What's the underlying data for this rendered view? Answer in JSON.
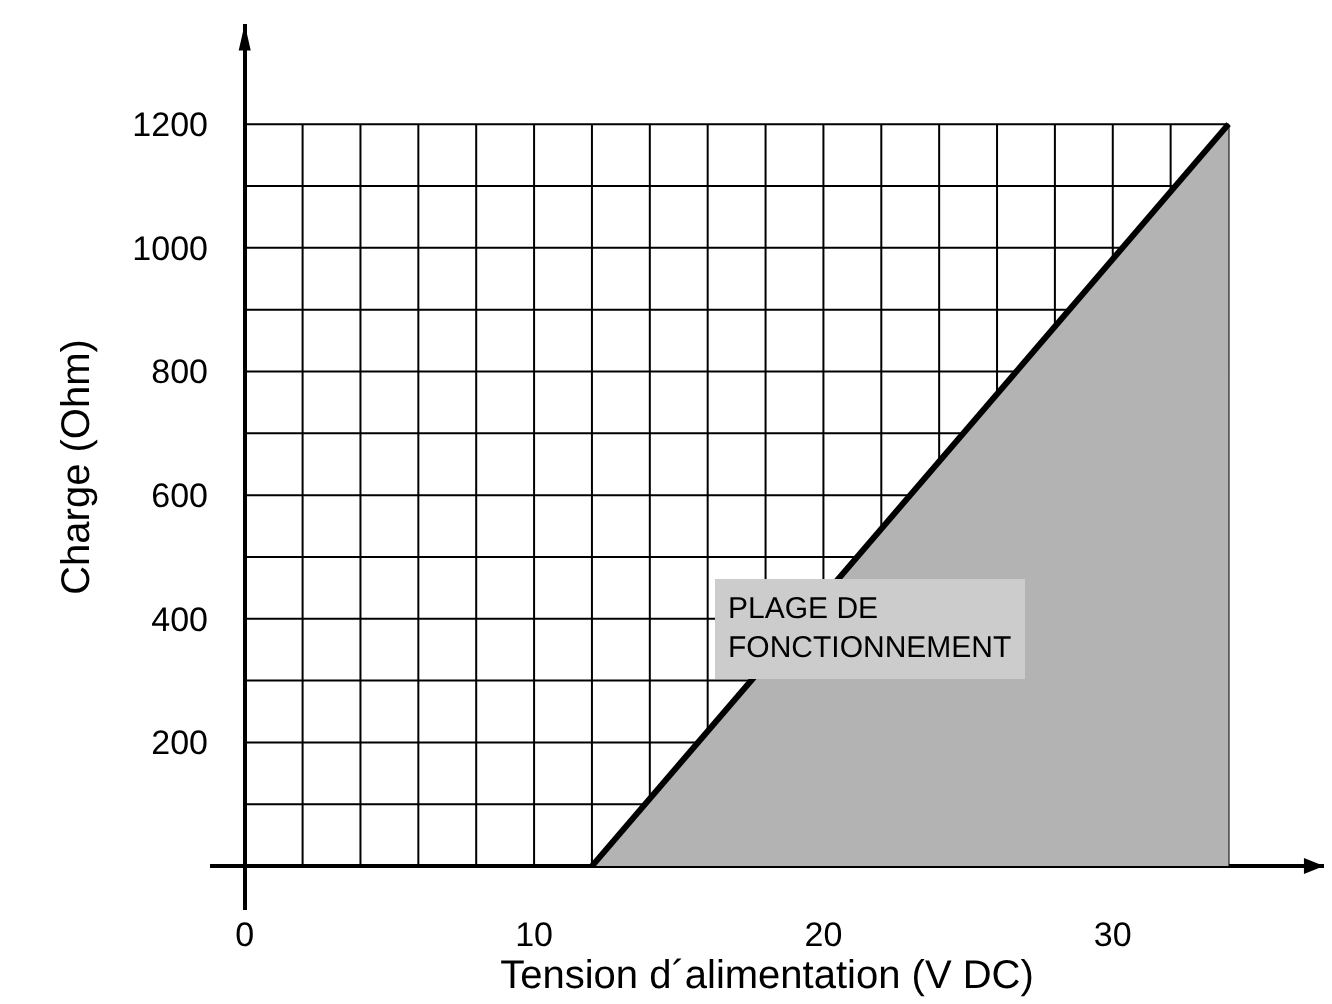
{
  "chart_data": {
    "type": "area",
    "xlabel": "Tension d´alimentation (V DC)",
    "ylabel": "Charge (Ohm)",
    "series": [
      {
        "color": "#b3b3b3",
        "x": [
          12,
          34
        ],
        "values": [
          0,
          1200
        ]
      }
    ],
    "xlim": [
      -1.2,
      37.3
    ],
    "ylim": [
      -71,
      1362
    ],
    "xticks": [
      0,
      {
        "value": 2,
        "label": null
      },
      {
        "value": 4,
        "label": null
      },
      {
        "value": 6,
        "label": null
      },
      {
        "value": 8,
        "label": null
      },
      10,
      {
        "value": 12,
        "label": null
      },
      {
        "value": 14,
        "label": null
      },
      {
        "value": 16,
        "label": null
      },
      {
        "value": 18,
        "label": null
      },
      20,
      {
        "value": 22,
        "label": null
      },
      {
        "value": 24,
        "label": null
      },
      {
        "value": 26,
        "label": null
      },
      {
        "value": 28,
        "label": null
      },
      30,
      {
        "value": 32,
        "label": null
      },
      {
        "value": 34,
        "label": null
      }
    ],
    "yticks": [
      {
        "value": 0,
        "label": null
      },
      {
        "value": 100,
        "label": null
      },
      200,
      {
        "value": 300,
        "label": null
      },
      400,
      {
        "value": 500,
        "label": null
      },
      600,
      {
        "value": 700,
        "label": null
      },
      800,
      {
        "value": 900,
        "label": null
      },
      1000,
      {
        "value": 1100,
        "label": null
      },
      1200
    ],
    "annotations": [
      "PLAGE DE\nFONCTIONNEMENT"
    ],
    "grid": true,
    "legend": false
  }
}
